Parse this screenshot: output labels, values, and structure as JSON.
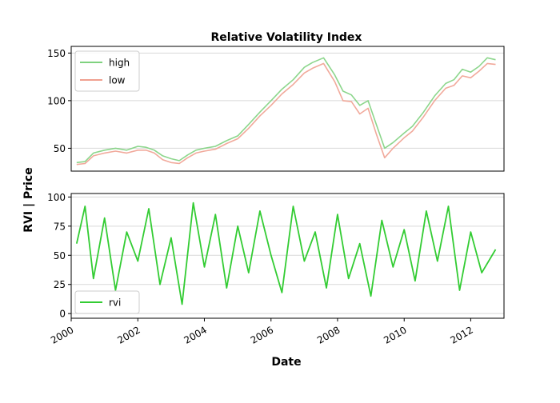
{
  "chart_data": {
    "title": "Relative Volatility Index",
    "xlabel": "Date",
    "ylabel": "RVI | Price",
    "x_ticks": [
      "2000",
      "2002",
      "2004",
      "2006",
      "2008",
      "2010",
      "2012"
    ],
    "x_range": [
      "2000-01-01",
      "2012-12-31"
    ],
    "panels": [
      {
        "type": "line",
        "ylim": [
          26,
          157
        ],
        "yticks": [
          50,
          100,
          150
        ],
        "grid": "horizontal",
        "legend": "top-left",
        "series": [
          {
            "name": "high",
            "color": "#7fd27f",
            "x": [
              "2000-03-01",
              "2000-06-01",
              "2000-09-01",
              "2001-01-01",
              "2001-05-01",
              "2001-09-01",
              "2002-01-01",
              "2002-04-01",
              "2002-07-01",
              "2002-10-01",
              "2003-01-01",
              "2003-04-01",
              "2003-07-01",
              "2003-10-01",
              "2004-01-01",
              "2004-05-01",
              "2004-09-01",
              "2005-01-01",
              "2005-05-01",
              "2005-09-01",
              "2006-01-01",
              "2006-05-01",
              "2006-09-01",
              "2007-01-01",
              "2007-04-01",
              "2007-08-01",
              "2007-12-01",
              "2008-03-01",
              "2008-06-01",
              "2008-09-01",
              "2008-12-01",
              "2009-03-01",
              "2009-06-01",
              "2009-09-01",
              "2010-01-01",
              "2010-04-01",
              "2010-08-01",
              "2010-12-01",
              "2011-04-01",
              "2011-07-01",
              "2011-10-01",
              "2012-01-01",
              "2012-04-01",
              "2012-07-01",
              "2012-09-30"
            ],
            "values": [
              35,
              36,
              45,
              48,
              50,
              48,
              52,
              51,
              48,
              42,
              39,
              37,
              43,
              48,
              50,
              52,
              58,
              63,
              75,
              88,
              100,
              112,
              122,
              135,
              140,
              145,
              127,
              110,
              106,
              95,
              100,
              75,
              50,
              56,
              66,
              73,
              88,
              105,
              118,
              122,
              133,
              130,
              136,
              145,
              143
            ]
          },
          {
            "name": "low",
            "color": "#f0a090",
            "x": [
              "2000-03-01",
              "2000-06-01",
              "2000-09-01",
              "2001-01-01",
              "2001-05-01",
              "2001-09-01",
              "2002-01-01",
              "2002-04-01",
              "2002-07-01",
              "2002-10-01",
              "2003-01-01",
              "2003-04-01",
              "2003-07-01",
              "2003-10-01",
              "2004-01-01",
              "2004-05-01",
              "2004-09-01",
              "2005-01-01",
              "2005-05-01",
              "2005-09-01",
              "2006-01-01",
              "2006-05-01",
              "2006-09-01",
              "2007-01-01",
              "2007-04-01",
              "2007-08-01",
              "2007-12-01",
              "2008-03-01",
              "2008-06-01",
              "2008-09-01",
              "2008-12-01",
              "2009-03-01",
              "2009-06-01",
              "2009-09-01",
              "2010-01-01",
              "2010-04-01",
              "2010-08-01",
              "2010-12-01",
              "2011-04-01",
              "2011-07-01",
              "2011-10-01",
              "2012-01-01",
              "2012-04-01",
              "2012-07-01",
              "2012-09-30"
            ],
            "values": [
              33,
              34,
              42,
              45,
              47,
              45,
              48,
              48,
              45,
              38,
              35,
              34,
              40,
              45,
              47,
              49,
              55,
              60,
              71,
              84,
              95,
              107,
              117,
              129,
              134,
              139,
              120,
              100,
              99,
              86,
              92,
              65,
              40,
              50,
              61,
              68,
              83,
              100,
              113,
              116,
              126,
              124,
              131,
              139,
              138
            ]
          }
        ]
      },
      {
        "type": "line",
        "ylim": [
          -4,
          103
        ],
        "yticks": [
          0,
          25,
          50,
          75,
          100
        ],
        "grid": "horizontal",
        "legend": "bottom-left",
        "series": [
          {
            "name": "rvi",
            "color": "#33cc33",
            "x": [
              "2000-03-01",
              "2000-06-01",
              "2000-09-01",
              "2001-01-01",
              "2001-05-01",
              "2001-09-01",
              "2002-01-01",
              "2002-05-01",
              "2002-09-01",
              "2003-01-01",
              "2003-05-01",
              "2003-09-01",
              "2004-01-01",
              "2004-05-01",
              "2004-09-01",
              "2005-01-01",
              "2005-05-01",
              "2005-09-01",
              "2006-01-01",
              "2006-05-01",
              "2006-09-01",
              "2007-01-01",
              "2007-05-01",
              "2007-09-01",
              "2008-01-01",
              "2008-05-01",
              "2008-09-01",
              "2009-01-01",
              "2009-05-01",
              "2009-09-01",
              "2010-01-01",
              "2010-05-01",
              "2010-09-01",
              "2011-01-01",
              "2011-05-01",
              "2011-09-01",
              "2012-01-01",
              "2012-05-01",
              "2012-09-30"
            ],
            "values": [
              60,
              92,
              30,
              82,
              20,
              70,
              45,
              90,
              25,
              65,
              8,
              95,
              40,
              85,
              22,
              75,
              35,
              88,
              50,
              18,
              92,
              45,
              70,
              22,
              85,
              30,
              60,
              15,
              80,
              40,
              72,
              28,
              88,
              45,
              92,
              20,
              70,
              35,
              55
            ]
          }
        ]
      }
    ]
  }
}
